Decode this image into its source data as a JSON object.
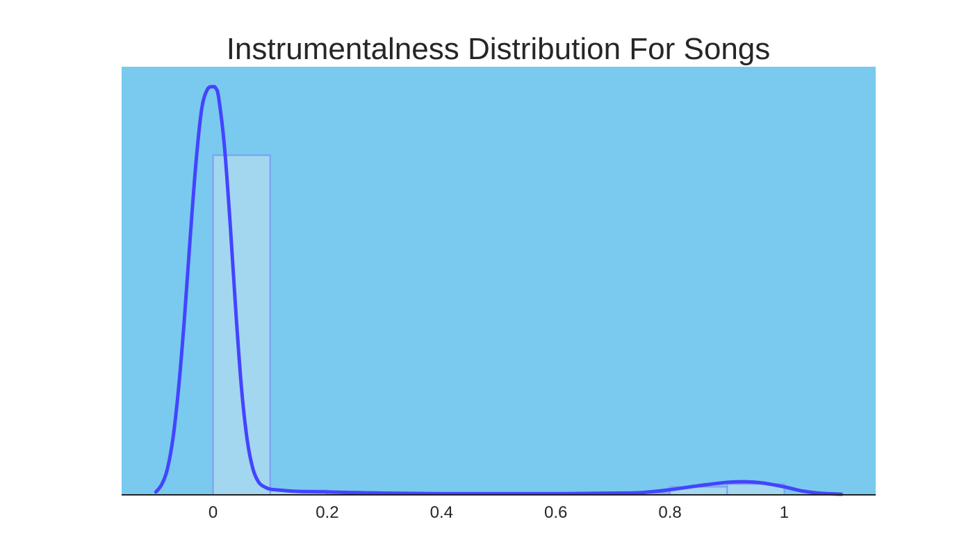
{
  "chart_data": {
    "type": "histogram",
    "title": "Instrumentalness Distribution For Songs",
    "xlabel": "",
    "ylabel": "",
    "xlim": [
      -0.16,
      1.16
    ],
    "ylim": [
      0,
      7.5
    ],
    "x_ticks": [
      0,
      0.2,
      0.4,
      0.6,
      0.8,
      1
    ],
    "x_tick_labels": [
      "0",
      "0.2",
      "0.4",
      "0.6",
      "0.8",
      "1"
    ],
    "y_ticks_visible": false,
    "grid": false,
    "bins": [
      {
        "start": 0.0,
        "end": 0.1,
        "value": 5.95
      },
      {
        "start": 0.1,
        "end": 0.2,
        "value": 0.08
      },
      {
        "start": 0.2,
        "end": 0.3,
        "value": 0.04
      },
      {
        "start": 0.3,
        "end": 0.4,
        "value": 0.02
      },
      {
        "start": 0.4,
        "end": 0.5,
        "value": 0.01
      },
      {
        "start": 0.5,
        "end": 0.6,
        "value": 0.01
      },
      {
        "start": 0.6,
        "end": 0.7,
        "value": 0.02
      },
      {
        "start": 0.7,
        "end": 0.8,
        "value": 0.03
      },
      {
        "start": 0.8,
        "end": 0.9,
        "value": 0.14
      },
      {
        "start": 0.9,
        "end": 1.0,
        "value": 0.19
      }
    ],
    "kde": {
      "x": [
        -0.1,
        -0.09,
        -0.08,
        -0.07,
        -0.06,
        -0.05,
        -0.04,
        -0.03,
        -0.02,
        -0.01,
        0,
        0.005,
        0.01,
        0.02,
        0.03,
        0.04,
        0.05,
        0.06,
        0.07,
        0.08,
        0.09,
        0.1,
        0.12,
        0.15,
        0.2,
        0.3,
        0.4,
        0.5,
        0.6,
        0.7,
        0.75,
        0.8,
        0.85,
        0.9,
        0.93,
        0.96,
        1.0,
        1.03,
        1.06,
        1.1
      ],
      "y": [
        0.05,
        0.18,
        0.45,
        1.0,
        1.9,
        3.1,
        4.5,
        5.8,
        6.75,
        7.1,
        7.15,
        7.12,
        6.95,
        6.1,
        4.75,
        3.2,
        1.85,
        0.95,
        0.45,
        0.22,
        0.14,
        0.1,
        0.08,
        0.06,
        0.05,
        0.03,
        0.02,
        0.02,
        0.02,
        0.03,
        0.04,
        0.09,
        0.16,
        0.22,
        0.23,
        0.21,
        0.14,
        0.07,
        0.03,
        0.01
      ]
    },
    "colors": {
      "background": "#79caee",
      "bar_fill": "#a3d6ef",
      "bar_edge": "#7f9cf0",
      "kde_line": "#4444ff",
      "axis_line": "#222222"
    }
  }
}
